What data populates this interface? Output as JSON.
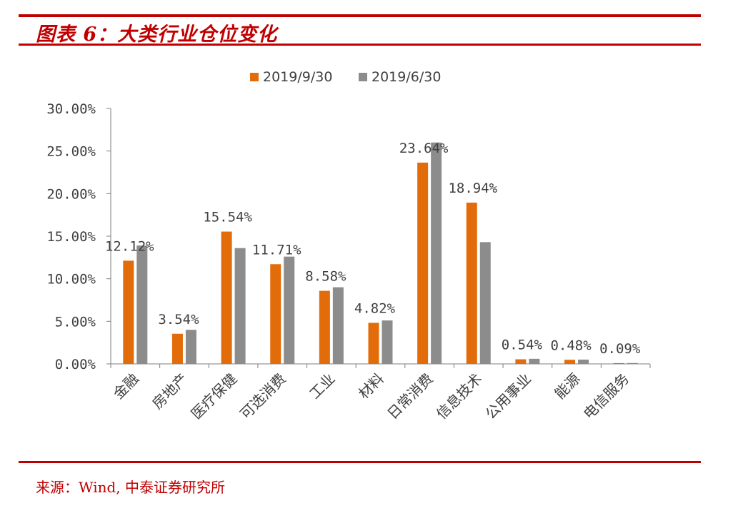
{
  "header": {
    "title": "图表 6：大类行业仓位变化"
  },
  "footer": {
    "source": "来源：Wind, 中泰证券研究所"
  },
  "colors": {
    "accent": "#c00000",
    "series1": "#e36c0a",
    "series2": "#8c8c8c",
    "axis": "#7f7f7f",
    "text": "#404040"
  },
  "chart_data": {
    "type": "bar",
    "title": "大类行业仓位变化",
    "categories": [
      "金融",
      "房地产",
      "医疗保健",
      "可选消费",
      "工业",
      "材料",
      "日常消费",
      "信息技术",
      "公用事业",
      "能源",
      "电信服务"
    ],
    "series": [
      {
        "name": "2019/9/30",
        "values": [
          12.12,
          3.54,
          15.54,
          11.71,
          8.58,
          4.82,
          23.64,
          18.94,
          0.54,
          0.48,
          0.09
        ]
      },
      {
        "name": "2019/6/30",
        "values": [
          13.9,
          4.0,
          13.6,
          12.6,
          9.0,
          5.1,
          26.0,
          14.3,
          0.6,
          0.5,
          0.1
        ]
      }
    ],
    "data_labels": [
      "12.12%",
      "3.54%",
      "15.54%",
      "11.71%",
      "8.58%",
      "4.82%",
      "23.64%",
      "18.94%",
      "0.54%",
      "0.48%",
      "0.09%"
    ],
    "yticks": [
      "0.00%",
      "5.00%",
      "10.00%",
      "15.00%",
      "20.00%",
      "25.00%",
      "30.00%"
    ],
    "ylim": [
      0,
      30
    ],
    "xlabel": "",
    "ylabel": "",
    "legend_position": "top-center"
  }
}
